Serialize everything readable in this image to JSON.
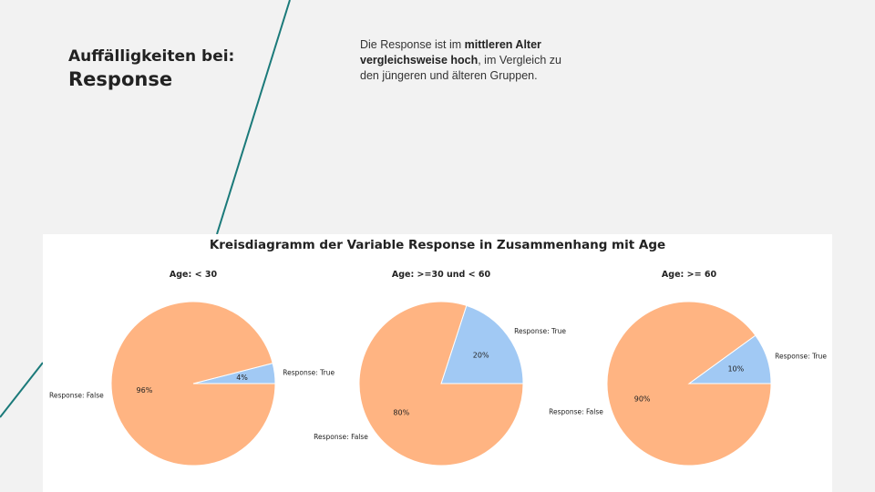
{
  "header": {
    "title_line1": "Auffälligkeiten bei:",
    "title_line2": "Response"
  },
  "note": {
    "part1": "Die Response ist im ",
    "bold": "mittleren Alter vergleichsweise hoch",
    "part2": ", im Vergleich zu den jüngeren und älteren Gruppen."
  },
  "colors": {
    "false_slice": "#ffb482",
    "true_slice": "#a1c9f4",
    "deco_line": "#1b7a7a"
  },
  "chart_data": {
    "type": "pie",
    "title": "Kreisdiagramm der Variable Response in Zusammenhang mit Age",
    "pies": [
      {
        "title": "Age: < 30",
        "slices": [
          {
            "label": "Response: False",
            "value": 96,
            "pct_label": "96%"
          },
          {
            "label": "Response: True",
            "value": 4,
            "pct_label": "4%"
          }
        ]
      },
      {
        "title": "Age: >=30 und < 60",
        "slices": [
          {
            "label": "Response: False",
            "value": 80,
            "pct_label": "80%"
          },
          {
            "label": "Response: True",
            "value": 20,
            "pct_label": "20%"
          }
        ]
      },
      {
        "title": "Age: >= 60",
        "slices": [
          {
            "label": "Response: False",
            "value": 90,
            "pct_label": "90%"
          },
          {
            "label": "Response: True",
            "value": 10,
            "pct_label": "10%"
          }
        ]
      }
    ]
  }
}
